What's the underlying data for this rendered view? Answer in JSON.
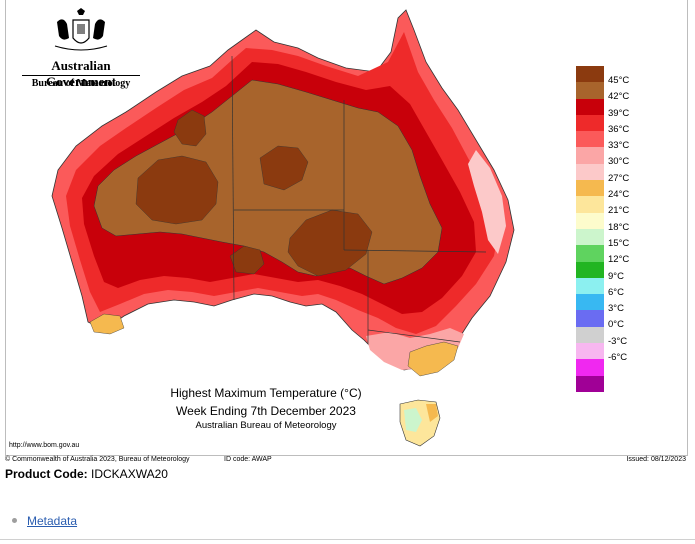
{
  "agency": {
    "government": "Australian Government",
    "bureau": "Bureau of Meteorology",
    "crest_icon": "coat-of-arms-icon"
  },
  "map": {
    "region": "Australia",
    "colors": {
      "c45": "#8b3a0f",
      "c42": "#a8642c",
      "c39": "#c8000a",
      "c36": "#ee2a2a",
      "c33": "#fb5a5a",
      "c30": "#fba6a6",
      "c27": "#fcc9c9",
      "c24": "#f5b94f",
      "c21": "#fde69b",
      "c18": "#fdfccc",
      "c15": "#ccf5cc"
    }
  },
  "legend": {
    "items": [
      {
        "label": "45°C",
        "color": "#8b3a0f"
      },
      {
        "label": "42°C",
        "color": "#a8642c"
      },
      {
        "label": "39°C",
        "color": "#c8000a"
      },
      {
        "label": "36°C",
        "color": "#ee2a2a"
      },
      {
        "label": "33°C",
        "color": "#fb5a5a"
      },
      {
        "label": "30°C",
        "color": "#fba6a6"
      },
      {
        "label": "27°C",
        "color": "#fcc9c9"
      },
      {
        "label": "24°C",
        "color": "#f5b94f"
      },
      {
        "label": "21°C",
        "color": "#fde69b"
      },
      {
        "label": "18°C",
        "color": "#fdfccc"
      },
      {
        "label": "15°C",
        "color": "#ccf5cc"
      },
      {
        "label": "12°C",
        "color": "#5fd35f"
      },
      {
        "label": "9°C",
        "color": "#22b522"
      },
      {
        "label": "6°C",
        "color": "#8cf0f0"
      },
      {
        "label": "3°C",
        "color": "#38b8f2"
      },
      {
        "label": "0°C",
        "color": "#6a6cf2"
      },
      {
        "label": "-3°C",
        "color": "#d0d0d0"
      },
      {
        "label": "-6°C",
        "color": "#f7b7f0"
      }
    ],
    "extra_colors": [
      "#f028f0",
      "#a00096"
    ]
  },
  "caption": {
    "title": "Highest Maximum Temperature (°C)",
    "week": "Week Ending 7th December 2023",
    "agency": "Australian Bureau of Meteorology",
    "url": "http://www.bom.gov.au"
  },
  "footer": {
    "copyright": "© Commonwealth of Australia 2023, Bureau of Meteorology",
    "id_code": "ID code: AWAP",
    "issued": "Issued: 08/12/2023"
  },
  "product": {
    "label": "Product Code:",
    "code": "IDCKAXWA20"
  },
  "links": {
    "metadata": "Metadata"
  }
}
